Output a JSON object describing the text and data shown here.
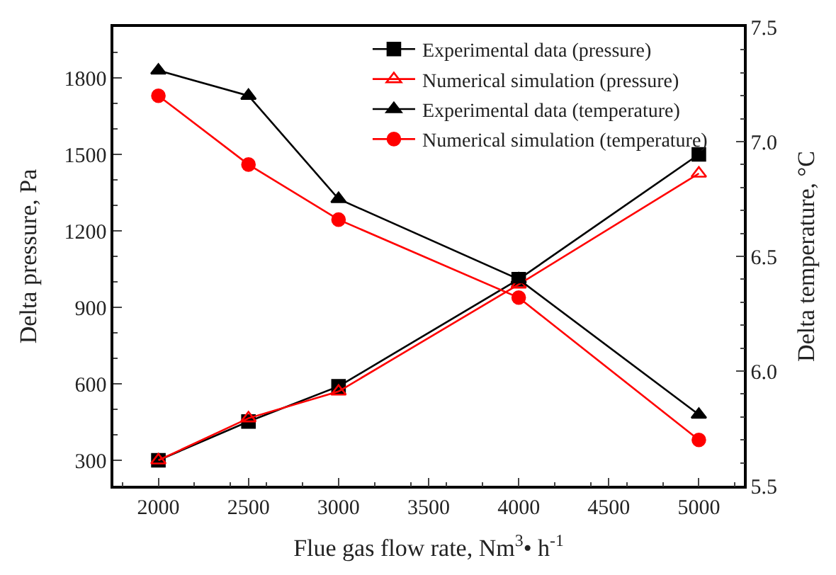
{
  "chart_data": {
    "type": "line",
    "xlabel": "Flue gas flow rate, Nm$^{3}$• h$^{-1}$",
    "ylabel": "Delta pressure, Pa",
    "y2label": "Delta temperature, °C",
    "x": [
      2000,
      2500,
      3000,
      4000,
      5000
    ],
    "series": [
      {
        "name": "Experimental data (pressure)",
        "color": "#000000",
        "marker": "square",
        "values": [
          300,
          452,
          590,
          1010,
          1500
        ]
      },
      {
        "name": "Numerical simulation (pressure)",
        "color": "#ff0000",
        "marker": "triangle-open",
        "values": [
          300,
          465,
          570,
          990,
          1425
        ]
      },
      {
        "name": "Experimental data (temperature)",
        "color": "#000000",
        "marker": "triangle",
        "axis": "y2",
        "values": [
          7.31,
          7.2,
          6.75,
          6.4,
          5.81
        ]
      },
      {
        "name": "Numerical simulation (temperature)",
        "color": "#ff0000",
        "marker": "circle",
        "axis": "y2",
        "values": [
          7.2,
          6.9,
          6.66,
          6.32,
          5.7
        ]
      }
    ],
    "xlim": [
      1750,
      5250
    ],
    "xticks": [
      2000,
      2500,
      3000,
      3500,
      4000,
      4500,
      5000
    ],
    "ylim": [
      200,
      2000
    ],
    "yticks": [
      300,
      600,
      900,
      1200,
      1500,
      1800
    ],
    "y2lim": [
      5.5,
      7.5
    ],
    "y2ticks": [
      {
        "value": 5.5,
        "label": "5.5"
      },
      {
        "value": 6.0,
        "label": "6.0"
      },
      {
        "value": 6.5,
        "label": "6.5"
      },
      {
        "value": 7.0,
        "label": "7.0"
      },
      {
        "value": 7.5,
        "label": "7.5"
      }
    ],
    "legend": "top right",
    "line_style": "solid"
  }
}
